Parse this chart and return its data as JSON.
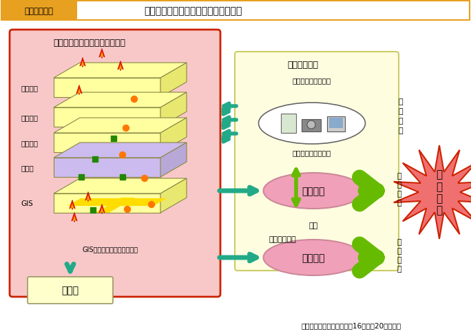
{
  "title_box_color": "#e8a020",
  "title_bg": "#ffffff",
  "title_label": "図２－１－２",
  "title_text": "防災情報共有プラットフォームの構築",
  "bg_color": "#ffffff",
  "left_box_color": "#f8c8c8",
  "left_box_border": "#cc2200",
  "left_title": "防災情報共有プラットフォーム",
  "right_box_color": "#fffde0",
  "right_box_border": "#cccc66",
  "right_title": "防災関係機関",
  "layer_colors": [
    "#ffffa0",
    "#ffffa0",
    "#ffffa0",
    "#ccbbee",
    "#ffffa0"
  ],
  "layer_labels": [
    "発災位置",
    "部隊配置",
    "拠点位置",
    "地形図",
    "GIS"
  ],
  "gis_label": "GISにより総合化された情報",
  "kanko_label": "官　邸",
  "info_top_text": "文書・画像・データ",
  "info_mid_text": "被害情報・活動情報",
  "info_shu_lines": [
    "情",
    "報",
    "収",
    "集"
  ],
  "ishi_label": "意思決定",
  "chosei_label": "調整",
  "genchi_label": "現地対策本部",
  "bousai_lines": [
    "防",
    "災",
    "活",
    "動"
  ],
  "saigai_lines": [
    "災",
    "害",
    "現",
    "場"
  ],
  "citation": "出典：中央防災会議（平成16年４月20日）資料",
  "teal_color": "#22aa88",
  "green_arrow_color": "#66bb00",
  "saigai_fill": "#f07070",
  "saigai_edge": "#cc2200",
  "ellipse_fill": "#f0a0b8",
  "ellipse_edge": "#cc8899",
  "kanko_fill": "#ffffcc",
  "kanko_edge": "#999966",
  "device_ellipse_fill": "#ffffff",
  "device_ellipse_edge": "#666666"
}
